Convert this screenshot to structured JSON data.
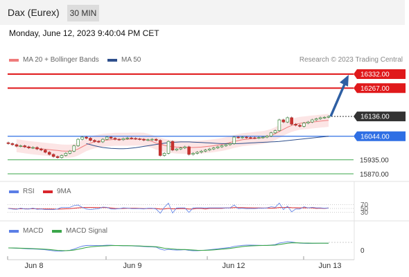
{
  "header": {
    "title": "Dax (Eurex)",
    "interval": "30 MIN",
    "timestamp": "Monday, June 12, 2023 9:40:04 PM CET"
  },
  "legend": {
    "ma20_label": "MA 20 + Bollinger Bands",
    "ma50_label": "MA 50",
    "copyright": "Research © 2023 Trading Central",
    "rsi_label": "RSI",
    "rsi_ma_label": "9MA",
    "macd_label": "MACD",
    "macd_signal_label": "MACD Signal"
  },
  "colors": {
    "resistance": "#e0191b",
    "support_blue": "#2f6fe4",
    "support_green": "#3aa64a",
    "last_price": "#333333",
    "ma20": "#ef7b7b",
    "bollinger_fill": "#fbe1e1",
    "ma50": "#2e4f8c",
    "arrow": "#2e5fa3",
    "rsi": "#5b7ee6",
    "rsi_ma": "#d9262c",
    "macd": "#5b7ee6",
    "macd_signal": "#3aa64a"
  },
  "chart_data": {
    "type": "candlestick",
    "instrument": "Dax (Eurex)",
    "interval": "30 MIN",
    "x_ticks": [
      "Jun 8",
      "Jun 9",
      "Jun 12",
      "Jun 13"
    ],
    "price_range": [
      15850,
      16360
    ],
    "levels": [
      {
        "value": 16332.0,
        "label": "16332.00",
        "kind": "resistance"
      },
      {
        "value": 16267.0,
        "label": "16267.00",
        "kind": "resistance"
      },
      {
        "value": 16136.0,
        "label": "16136.00",
        "kind": "last_price"
      },
      {
        "value": 16044.0,
        "label": "16044.00",
        "kind": "pivot"
      },
      {
        "value": 15935.0,
        "label": "15935.00",
        "kind": "support"
      },
      {
        "value": 15870.0,
        "label": "15870.00",
        "kind": "support"
      }
    ],
    "close": [
      16010,
      16005,
      15998,
      16000,
      15995,
      15990,
      15992,
      15985,
      15980,
      15970,
      15960,
      15950,
      15945,
      15955,
      15965,
      15975,
      16000,
      16030,
      16040,
      16035,
      16025,
      16020,
      16018,
      16030,
      16040,
      16035,
      16030,
      16028,
      16033,
      16036,
      16034,
      16032,
      16030,
      16026,
      16028,
      16030,
      16025,
      15955,
      15965,
      16020,
      15980,
      15985,
      15990,
      15995,
      15960,
      15965,
      15970,
      15975,
      15980,
      15985,
      15990,
      15995,
      16000,
      16005,
      16010,
      16040,
      16038,
      16040,
      16038,
      16037,
      16036,
      16038,
      16040,
      16045,
      16060,
      16070,
      16120,
      16110,
      16130,
      16100,
      16095,
      16090,
      16105,
      16110,
      16120,
      16125,
      16130,
      16132,
      16136
    ],
    "ma20": [
      16000,
      15998,
      15995,
      15992,
      15990,
      15988,
      15986,
      15984,
      15982,
      15980,
      15978,
      15976,
      15975,
      15975,
      15978,
      15985,
      15995,
      16005,
      16012,
      16018,
      16022,
      16025,
      16027,
      16028,
      16030,
      16030,
      16030,
      16030,
      16031,
      16031,
      16031,
      16030,
      16026,
      16020,
      16012,
      16008,
      16002,
      15998,
      15996,
      15994,
      15993,
      15992,
      15992,
      15992,
      15993,
      15994,
      15996,
      15998,
      16000,
      16003,
      16006,
      16010,
      16015,
      16020,
      16024,
      16028,
      16030,
      16032,
      16034,
      16036,
      16038,
      16042,
      16048,
      16056,
      16066,
      16076,
      16086,
      16094,
      16100,
      16104,
      16106,
      16108,
      16110,
      16112,
      16114,
      16116,
      16118
    ],
    "ma50": [
      16010,
      16005,
      16000,
      15996,
      15992,
      15990,
      15988,
      15987,
      15986,
      15986,
      15987,
      15989,
      15991,
      15994,
      15997,
      16000,
      16003,
      16006,
      16009,
      16012,
      16014,
      16016,
      16017,
      16018,
      16018,
      16018,
      16017,
      16016,
      16015,
      16014,
      16013,
      16012,
      16011,
      16010,
      16010,
      16010,
      16010,
      16010,
      16011,
      16012,
      16013,
      16014,
      16015,
      16016,
      16017,
      16018,
      16019,
      16020,
      16022,
      16024,
      16026,
      16028,
      16030,
      16032,
      16034,
      16036,
      16038,
      16040,
      16042,
      16044
    ],
    "bollinger_width": 30,
    "rsi": {
      "levels": [
        70,
        50,
        30
      ],
      "rsi_last": 50,
      "ma9_last": 51
    },
    "macd": {
      "zero_label": "0"
    },
    "projection": {
      "from": 16136.0,
      "to": 16332.0
    }
  }
}
